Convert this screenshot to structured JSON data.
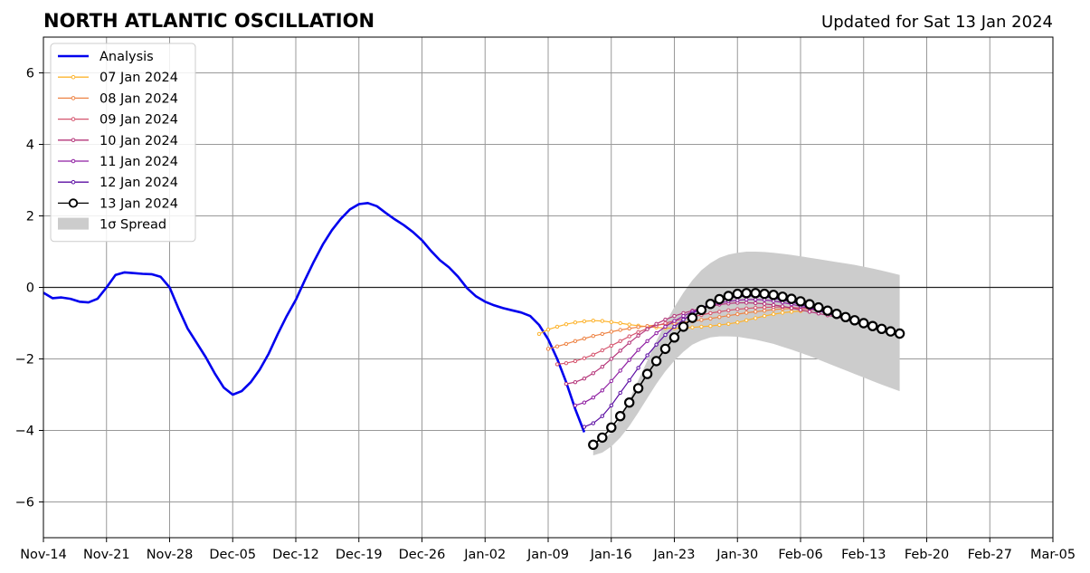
{
  "chart_data": {
    "type": "line",
    "title": "NORTH ATLANTIC OSCILLATION",
    "subtitle": "Updated for Sat 13 Jan 2024",
    "xlabel": "",
    "ylabel": "",
    "xlim": [
      "2023-11-14",
      "2024-03-05"
    ],
    "ylim": [
      -7,
      7
    ],
    "x_ticks": [
      "Nov-14",
      "Nov-21",
      "Nov-28",
      "Dec-05",
      "Dec-12",
      "Dec-19",
      "Dec-26",
      "Jan-02",
      "Jan-09",
      "Jan-16",
      "Jan-23",
      "Jan-30",
      "Feb-06",
      "Feb-13",
      "Feb-20",
      "Feb-27",
      "Mar-05"
    ],
    "y_ticks": [
      6,
      4,
      2,
      0,
      -2,
      -4,
      -6
    ],
    "grid": true,
    "legend_position": "top-left",
    "analysis": {
      "name": "Analysis",
      "color": "#0000ee",
      "start": "2023-11-14",
      "values": [
        -0.15,
        -0.3,
        -0.28,
        -0.32,
        -0.4,
        -0.42,
        -0.32,
        0.0,
        0.35,
        0.42,
        0.4,
        0.38,
        0.37,
        0.3,
        0.0,
        -0.6,
        -1.15,
        -1.55,
        -1.95,
        -2.4,
        -2.8,
        -3.0,
        -2.9,
        -2.65,
        -2.3,
        -1.85,
        -1.3,
        -0.8,
        -0.35,
        0.2,
        0.72,
        1.2,
        1.6,
        1.92,
        2.18,
        2.33,
        2.36,
        2.27,
        2.08,
        1.9,
        1.74,
        1.55,
        1.32,
        1.02,
        0.76,
        0.56,
        0.3,
        -0.02,
        -0.25,
        -0.4,
        -0.5,
        -0.58,
        -0.64,
        -0.7,
        -0.8,
        -1.05,
        -1.45,
        -2.0,
        -2.65,
        -3.4,
        -4.05
      ]
    },
    "forecasts": [
      {
        "name": "07 Jan 2024",
        "color": "#fdb42f",
        "start": "2024-01-08",
        "values": [
          -1.3,
          -1.18,
          -1.1,
          -1.03,
          -0.98,
          -0.95,
          -0.93,
          -0.94,
          -0.97,
          -1.0,
          -1.04,
          -1.07,
          -1.1,
          -1.12,
          -1.14,
          -1.14,
          -1.14,
          -1.12,
          -1.1,
          -1.08,
          -1.05,
          -1.02,
          -0.98,
          -0.92,
          -0.86,
          -0.8,
          -0.75,
          -0.71,
          -0.68,
          -0.66,
          -0.65
        ]
      },
      {
        "name": "08 Jan 2024",
        "color": "#ee8445",
        "start": "2024-01-09",
        "values": [
          -1.72,
          -1.65,
          -1.58,
          -1.5,
          -1.43,
          -1.36,
          -1.3,
          -1.24,
          -1.19,
          -1.15,
          -1.11,
          -1.08,
          -1.05,
          -1.03,
          -1.01,
          -0.98,
          -0.95,
          -0.91,
          -0.87,
          -0.83,
          -0.79,
          -0.75,
          -0.71,
          -0.68,
          -0.65,
          -0.62,
          -0.6,
          -0.59,
          -0.59,
          -0.6,
          -0.62,
          -0.64
        ]
      },
      {
        "name": "09 Jan 2024",
        "color": "#d5546e",
        "start": "2024-01-10",
        "values": [
          -2.15,
          -2.12,
          -2.06,
          -1.98,
          -1.88,
          -1.76,
          -1.63,
          -1.5,
          -1.37,
          -1.25,
          -1.15,
          -1.07,
          -1.0,
          -0.94,
          -0.88,
          -0.82,
          -0.77,
          -0.72,
          -0.68,
          -0.64,
          -0.61,
          -0.59,
          -0.57,
          -0.56,
          -0.55,
          -0.55,
          -0.56,
          -0.58,
          -0.61,
          -0.65,
          -0.7,
          -0.76
        ]
      },
      {
        "name": "10 Jan 2024",
        "color": "#b5367a",
        "start": "2024-01-11",
        "values": [
          -2.7,
          -2.65,
          -2.55,
          -2.4,
          -2.22,
          -2.0,
          -1.77,
          -1.55,
          -1.35,
          -1.17,
          -1.02,
          -0.9,
          -0.8,
          -0.72,
          -0.65,
          -0.58,
          -0.53,
          -0.48,
          -0.45,
          -0.43,
          -0.43,
          -0.44,
          -0.46,
          -0.49,
          -0.53,
          -0.58,
          -0.63,
          -0.68,
          -0.73,
          -0.78,
          -0.83,
          -0.88,
          -0.93
        ]
      },
      {
        "name": "11 Jan 2024",
        "color": "#8f1fa2",
        "start": "2024-01-12",
        "values": [
          -3.3,
          -3.22,
          -3.08,
          -2.88,
          -2.62,
          -2.33,
          -2.03,
          -1.75,
          -1.5,
          -1.28,
          -1.1,
          -0.94,
          -0.8,
          -0.68,
          -0.58,
          -0.5,
          -0.44,
          -0.39,
          -0.36,
          -0.34,
          -0.34,
          -0.35,
          -0.38,
          -0.42,
          -0.47,
          -0.53,
          -0.59,
          -0.66,
          -0.73,
          -0.8,
          -0.87,
          -0.94,
          -1.01,
          -1.08
        ]
      },
      {
        "name": "12 Jan 2024",
        "color": "#5c0ea3",
        "start": "2024-01-13",
        "values": [
          -3.9,
          -3.8,
          -3.6,
          -3.3,
          -2.95,
          -2.6,
          -2.25,
          -1.9,
          -1.6,
          -1.33,
          -1.1,
          -0.9,
          -0.73,
          -0.58,
          -0.46,
          -0.37,
          -0.3,
          -0.26,
          -0.24,
          -0.24,
          -0.26,
          -0.3,
          -0.35,
          -0.41,
          -0.48,
          -0.56,
          -0.64,
          -0.72,
          -0.8,
          -0.89,
          -0.97,
          -1.05,
          -1.13,
          -1.21,
          -1.28
        ]
      },
      {
        "name": "13 Jan 2024",
        "color": "#000000",
        "start": "2024-01-14",
        "values": [
          -4.4,
          -4.2,
          -3.92,
          -3.6,
          -3.22,
          -2.82,
          -2.42,
          -2.06,
          -1.72,
          -1.4,
          -1.1,
          -0.85,
          -0.63,
          -0.46,
          -0.33,
          -0.24,
          -0.18,
          -0.16,
          -0.16,
          -0.18,
          -0.21,
          -0.26,
          -0.32,
          -0.39,
          -0.47,
          -0.56,
          -0.65,
          -0.74,
          -0.83,
          -0.92,
          -1.0,
          -1.08,
          -1.16,
          -1.23,
          -1.29
        ]
      }
    ],
    "spread": {
      "name": "1σ Spread",
      "color": "#cccccc",
      "start": "2024-01-14",
      "upper": [
        -4.45,
        -4.3,
        -4.05,
        -3.65,
        -3.15,
        -2.6,
        -2.05,
        -1.5,
        -1.0,
        -0.55,
        -0.15,
        0.2,
        0.48,
        0.68,
        0.83,
        0.92,
        0.97,
        1.0,
        1.0,
        0.99,
        0.97,
        0.94,
        0.91,
        0.87,
        0.83,
        0.79,
        0.75,
        0.71,
        0.67,
        0.63,
        0.58,
        0.53,
        0.47,
        0.41,
        0.35
      ],
      "lower": [
        -4.7,
        -4.62,
        -4.45,
        -4.2,
        -3.88,
        -3.5,
        -3.1,
        -2.7,
        -2.35,
        -2.05,
        -1.8,
        -1.6,
        -1.48,
        -1.4,
        -1.37,
        -1.37,
        -1.38,
        -1.42,
        -1.46,
        -1.52,
        -1.58,
        -1.66,
        -1.74,
        -1.83,
        -1.92,
        -2.02,
        -2.12,
        -2.22,
        -2.32,
        -2.42,
        -2.52,
        -2.62,
        -2.72,
        -2.81,
        -2.9
      ]
    }
  }
}
